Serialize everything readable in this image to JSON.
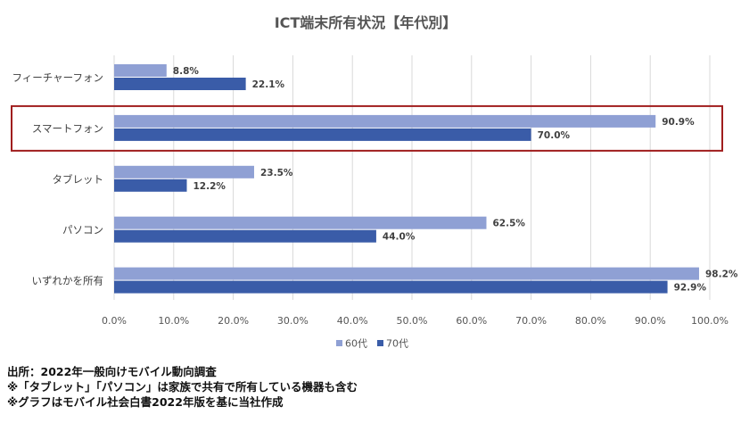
{
  "chart_data": {
    "type": "bar",
    "orientation": "horizontal",
    "title": "ICT端末所有状況【年代別】",
    "categories": [
      "フィーチャーフォン",
      "スマートフォン",
      "タブレット",
      "パソコン",
      "いずれかを所有"
    ],
    "series": [
      {
        "name": "60代",
        "values": [
          8.8,
          90.9,
          23.5,
          62.5,
          98.2
        ],
        "labels": [
          "8.8%",
          "90.9%",
          "23.5%",
          "62.5%",
          "98.2%"
        ],
        "color": "#8fa0d4"
      },
      {
        "name": "70代",
        "values": [
          22.1,
          70.0,
          12.2,
          44.0,
          92.9
        ],
        "labels": [
          "22.1%",
          "70.0%",
          "12.2%",
          "44.0%",
          "92.9%"
        ],
        "color": "#3a5ca8"
      }
    ],
    "xlim": [
      0,
      100
    ],
    "x_ticks": [
      "0.0%",
      "10.0%",
      "20.0%",
      "30.0%",
      "40.0%",
      "50.0%",
      "60.0%",
      "70.0%",
      "80.0%",
      "90.0%",
      "100.0%"
    ],
    "grid": true,
    "legend_position": "bottom",
    "highlighted_category": "スマートフォン",
    "highlight_color": "#a01e1e"
  },
  "notes": [
    "出所：2022年一般向けモバイル動向調査",
    "※「タブレット」「パソコン」は家族で共有で所有している機器も含む",
    "※グラフはモバイル社会白書2022年版を基に当社作成"
  ]
}
